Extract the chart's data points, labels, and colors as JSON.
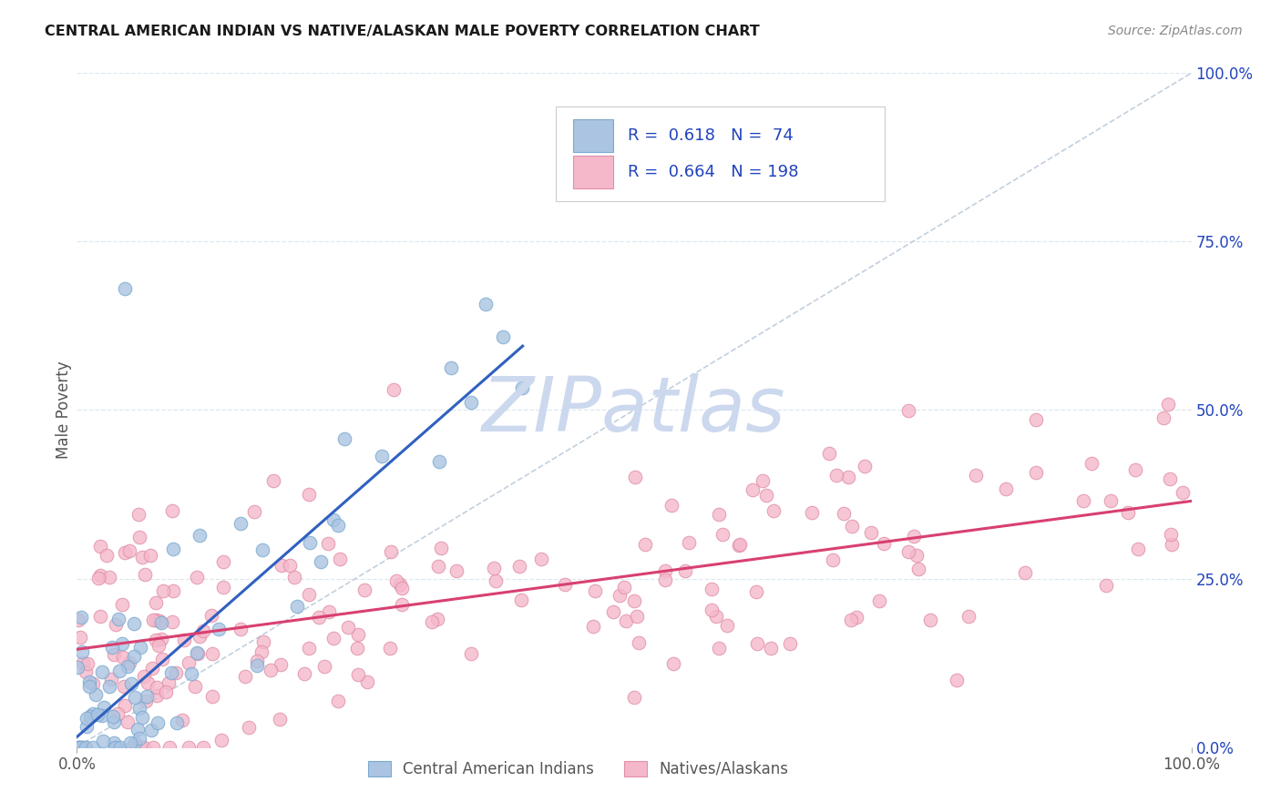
{
  "title": "CENTRAL AMERICAN INDIAN VS NATIVE/ALASKAN MALE POVERTY CORRELATION CHART",
  "source": "Source: ZipAtlas.com",
  "ylabel": "Male Poverty",
  "xlim": [
    0,
    1
  ],
  "ylim": [
    0,
    1
  ],
  "xtick_labels": [
    "0.0%",
    "100.0%"
  ],
  "right_ytick_labels": [
    "0.0%",
    "25.0%",
    "50.0%",
    "75.0%",
    "100.0%"
  ],
  "right_ytick_positions": [
    0,
    0.25,
    0.5,
    0.75,
    1.0
  ],
  "r1_val": "0.618",
  "n1_val": "74",
  "r2_val": "0.664",
  "n2_val": "198",
  "series1_face": "#aac4e2",
  "series1_edge": "#7aaad0",
  "series2_face": "#f5b8cb",
  "series2_edge": "#e090a8",
  "line1_color": "#3060c0",
  "line2_color": "#d84070",
  "ref_line_color": "#b8c8d8",
  "grid_color": "#dce8f0",
  "bg_color": "#ffffff",
  "watermark_color": "#ccd8ee",
  "title_color": "#1a1a1a",
  "source_color": "#888888",
  "legend_text_color": "#2244bb",
  "axis_tick_color": "#555555",
  "seed1": 77,
  "seed2": 55,
  "n1": 74,
  "n2": 198
}
